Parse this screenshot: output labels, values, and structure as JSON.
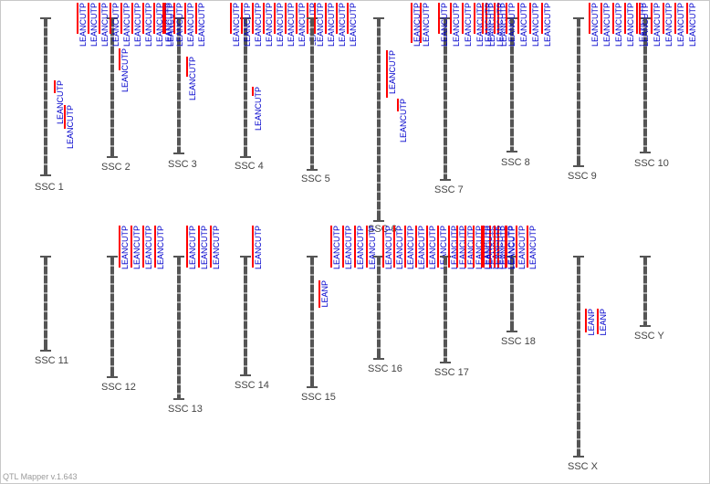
{
  "app": {
    "version_text": "QTL Mapper v.1.643"
  },
  "colors": {
    "chromosome": "#555555",
    "qtl_bar": "#ff0000",
    "qtl_text": "#0000cc",
    "label": "#444444"
  },
  "chromosomes": [
    {
      "name": "SSC 1",
      "qtls": [
        {
          "trait": "LEANCUTP",
          "count": 1
        },
        {
          "trait": "LEANCUTP",
          "count": 1
        }
      ]
    },
    {
      "name": "SSC 2",
      "qtls": [
        {
          "trait": "LEANCUTP",
          "count": 9
        },
        {
          "trait": "LEANCUTP",
          "count": 1
        }
      ]
    },
    {
      "name": "SSC 3",
      "qtls": [
        {
          "trait": "LEANCUTP",
          "count": 4
        },
        {
          "trait": "LEANCUTP",
          "count": 1
        }
      ]
    },
    {
      "name": "SSC 4",
      "qtls": [
        {
          "trait": "LEANCUTP",
          "count": 8
        },
        {
          "trait": "LEANCUTP",
          "count": 1
        }
      ]
    },
    {
      "name": "SSC 5",
      "qtls": [
        {
          "trait": "LEANCUTP",
          "count": 4
        }
      ]
    },
    {
      "name": "SSC 6",
      "qtls": [
        {
          "trait": "LEANCUTP",
          "count": 2
        },
        {
          "trait": "LEANCUTP",
          "count": 1
        },
        {
          "trait": "LEANCUTP",
          "count": 1
        }
      ]
    },
    {
      "name": "SSC 7",
      "qtls": [
        {
          "trait": "LEANCUTP",
          "count": 6
        }
      ]
    },
    {
      "name": "SSC 8",
      "qtls": [
        {
          "trait": "LEANCUTP",
          "count": 6
        }
      ]
    },
    {
      "name": "SSC 9",
      "qtls": [
        {
          "trait": "LEANCUTP",
          "count": 5
        }
      ]
    },
    {
      "name": "SSC 10",
      "qtls": [
        {
          "trait": "LEANCUTP",
          "count": 5
        }
      ]
    },
    {
      "name": "SSC 11",
      "qtls": []
    },
    {
      "name": "SSC 12",
      "qtls": [
        {
          "trait": "LEANCUTP",
          "count": 4
        }
      ]
    },
    {
      "name": "SSC 13",
      "qtls": [
        {
          "trait": "LEANCUTP",
          "count": 3
        }
      ]
    },
    {
      "name": "SSC 14",
      "qtls": [
        {
          "trait": "LEANCUTP",
          "count": 1
        }
      ]
    },
    {
      "name": "SSC 15",
      "qtls": [
        {
          "trait": "LEANCUTP",
          "count": 4
        },
        {
          "trait": "LEANP",
          "count": 1
        }
      ]
    },
    {
      "name": "SSC 16",
      "qtls": [
        {
          "trait": "LEANCUTP",
          "count": 6
        }
      ]
    },
    {
      "name": "SSC 17",
      "qtls": [
        {
          "trait": "LEANCUTP",
          "count": 8
        }
      ]
    },
    {
      "name": "SSC 18",
      "qtls": [
        {
          "trait": "LEANCUTP",
          "count": 5
        }
      ]
    },
    {
      "name": "SSC X",
      "qtls": [
        {
          "trait": "LEANP",
          "count": 1
        },
        {
          "trait": "LEANP",
          "count": 1
        }
      ]
    },
    {
      "name": "SSC Y",
      "qtls": []
    }
  ]
}
